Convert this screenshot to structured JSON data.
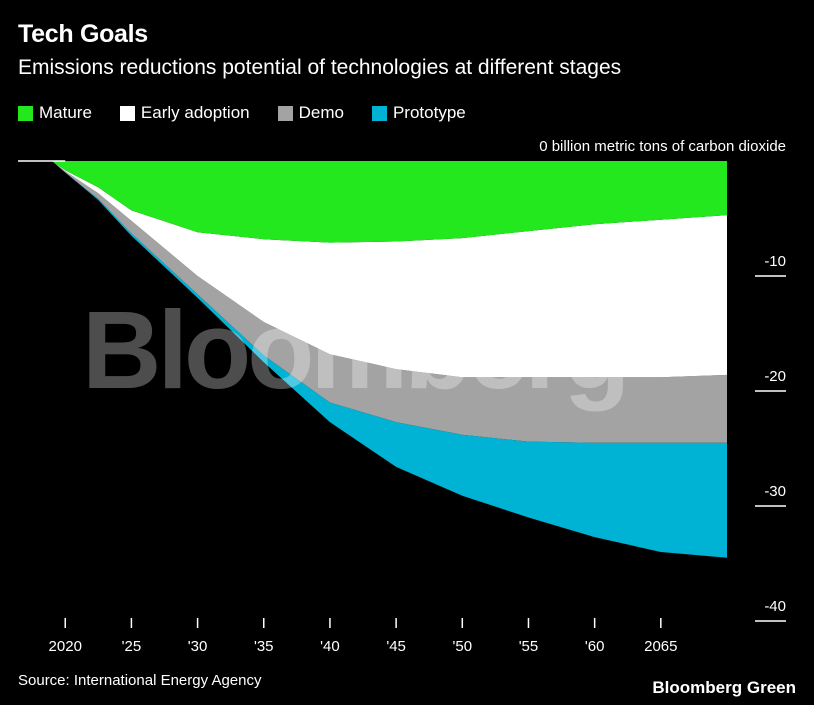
{
  "chart_data": {
    "type": "area",
    "title": "Tech Goals",
    "subtitle": "Emissions reductions potential of technologies at different stages",
    "ylabel": "billion metric tons of carbon dioxide",
    "ylim": [
      -40,
      0
    ],
    "yticks": [
      0,
      -10,
      -20,
      -30,
      -40
    ],
    "ytick_labels": [
      "0 billion metric tons of carbon dioxide",
      "-10",
      "-20",
      "-30",
      "-40"
    ],
    "xlim": [
      2019,
      2070
    ],
    "xticks": [
      2020,
      2025,
      2030,
      2035,
      2040,
      2045,
      2050,
      2055,
      2060,
      2065
    ],
    "xtick_labels": [
      "2020",
      "'25",
      "'30",
      "'35",
      "'40",
      "'45",
      "'50",
      "'55",
      "'60",
      "2065"
    ],
    "x": [
      2017,
      2019,
      2020,
      2022.5,
      2025,
      2030,
      2035,
      2040,
      2045,
      2050,
      2055,
      2060,
      2065,
      2070
    ],
    "series": [
      {
        "name": "Mature",
        "color": "#23e81e",
        "values": [
          0,
          0,
          -0.8,
          -2.3,
          -4.3,
          -6.2,
          -6.8,
          -7.1,
          -7.0,
          -6.7,
          -6.1,
          -5.5,
          -5.1,
          -4.7
        ]
      },
      {
        "name": "Early adoption",
        "color": "#ffffff",
        "values": [
          0,
          0,
          -0.9,
          -2.8,
          -5.2,
          -10.0,
          -14.0,
          -16.8,
          -18.1,
          -18.8,
          -18.8,
          -18.8,
          -18.8,
          -18.6
        ]
      },
      {
        "name": "Demo",
        "color": "#a3a3a3",
        "values": [
          0,
          0,
          -1.0,
          -3.3,
          -6.3,
          -11.6,
          -16.9,
          -21.0,
          -22.7,
          -23.8,
          -24.4,
          -24.5,
          -24.5,
          -24.5
        ]
      },
      {
        "name": "Prototype",
        "color": "#00b2d4",
        "values": [
          0,
          0,
          -1.0,
          -3.4,
          -6.5,
          -11.9,
          -17.5,
          -22.7,
          -26.6,
          -29.1,
          -31.0,
          -32.7,
          -34.0,
          -34.5
        ]
      }
    ],
    "watermark": "Bloomberg",
    "source": "Source: International Energy Agency",
    "brand": "Bloomberg Green"
  }
}
